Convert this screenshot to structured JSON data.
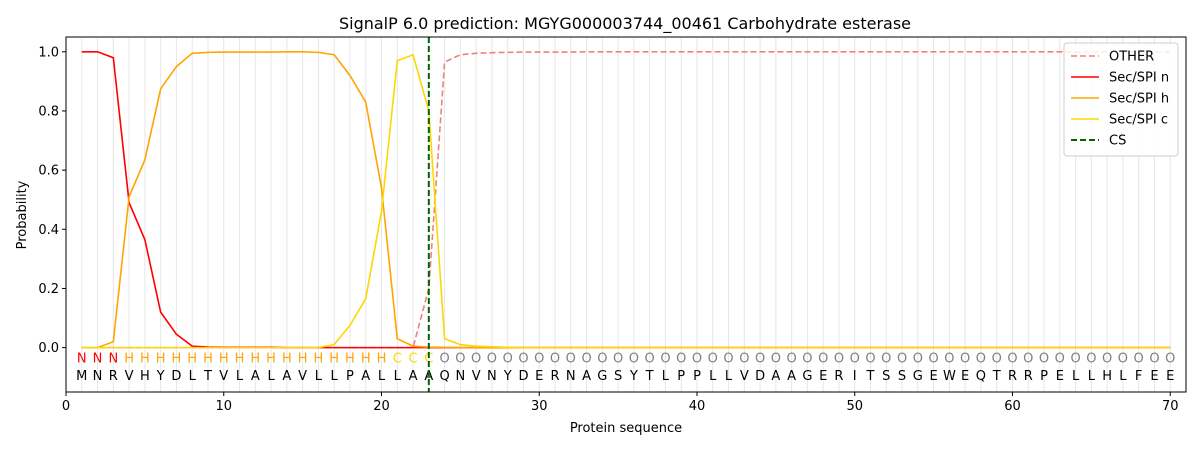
{
  "chart_data": {
    "type": "line",
    "title": "SignalP 6.0 prediction: MGYG000003744_00461 Carbohydrate esterase",
    "xlabel": "Protein sequence",
    "ylabel": "Probability",
    "xlim": [
      0,
      71
    ],
    "ylim": [
      -0.15,
      1.05
    ],
    "xticks": [
      0,
      10,
      20,
      30,
      40,
      50,
      60,
      70
    ],
    "yticks": [
      0.0,
      0.2,
      0.4,
      0.6,
      0.8,
      1.0
    ],
    "xtick_labels": [
      "0",
      "10",
      "20",
      "30",
      "40",
      "50",
      "60",
      "70"
    ],
    "ytick_labels": [
      "0.0",
      "0.2",
      "0.4",
      "0.6",
      "0.8",
      "1.0"
    ],
    "grid": "vertical lines at each residue",
    "legend_position": "top-right",
    "sequence": [
      "M",
      "N",
      "R",
      "V",
      "H",
      "Y",
      "D",
      "L",
      "T",
      "V",
      "L",
      "A",
      "L",
      "A",
      "V",
      "L",
      "L",
      "P",
      "A",
      "L",
      "L",
      "A",
      "A",
      "Q",
      "N",
      "V",
      "N",
      "Y",
      "D",
      "E",
      "R",
      "N",
      "A",
      "G",
      "S",
      "Y",
      "T",
      "L",
      "P",
      "P",
      "L",
      "L",
      "V",
      "D",
      "A",
      "A",
      "G",
      "E",
      "R",
      "I",
      "T",
      "S",
      "S",
      "G",
      "E",
      "W",
      "E",
      "Q",
      "T",
      "R",
      "R",
      "P",
      "E",
      "L",
      "L",
      "H",
      "L",
      "F",
      "E",
      "E"
    ],
    "region_labels": [
      "N",
      "N",
      "N",
      "H",
      "H",
      "H",
      "H",
      "H",
      "H",
      "H",
      "H",
      "H",
      "H",
      "H",
      "H",
      "H",
      "H",
      "H",
      "H",
      "H",
      "C",
      "C",
      "C",
      "O",
      "O",
      "O",
      "O",
      "O",
      "O",
      "O",
      "O",
      "O",
      "O",
      "O",
      "O",
      "O",
      "O",
      "O",
      "O",
      "O",
      "O",
      "O",
      "O",
      "O",
      "O",
      "O",
      "O",
      "O",
      "O",
      "O",
      "O",
      "O",
      "O",
      "O",
      "O",
      "O",
      "O",
      "O",
      "O",
      "O",
      "O",
      "O",
      "O",
      "O",
      "O",
      "O",
      "O",
      "O",
      "O",
      "O"
    ],
    "region_colors": {
      "N": "#ff0000",
      "H": "#ffa500",
      "C": "#ffd700",
      "O": "#808080"
    },
    "cs_position": 23,
    "series": [
      {
        "name": "OTHER",
        "color": "#f08080",
        "dash": "dashed",
        "values": [
          0.0,
          0.0,
          0.0,
          0.0,
          0.0,
          0.0,
          0.0,
          0.0,
          0.0,
          0.0,
          0.0,
          0.0,
          0.0,
          0.0,
          0.0,
          0.0,
          0.0,
          0.0,
          0.0,
          0.0,
          0.0,
          0.0,
          0.2,
          0.965,
          0.99,
          0.995,
          0.997,
          0.998,
          0.999,
          0.999,
          0.999,
          0.999,
          1.0,
          1.0,
          1.0,
          1.0,
          1.0,
          1.0,
          1.0,
          1.0,
          1.0,
          1.0,
          1.0,
          1.0,
          1.0,
          1.0,
          1.0,
          1.0,
          1.0,
          1.0,
          1.0,
          1.0,
          1.0,
          1.0,
          1.0,
          1.0,
          1.0,
          1.0,
          1.0,
          1.0,
          1.0,
          1.0,
          1.0,
          1.0,
          1.0,
          1.0,
          1.0,
          1.0,
          1.0,
          1.0
        ]
      },
      {
        "name": "Sec/SPI n",
        "color": "#ff0000",
        "dash": "solid",
        "values": [
          1.0,
          1.0,
          0.98,
          0.49,
          0.365,
          0.12,
          0.045,
          0.005,
          0.002,
          0.001,
          0.001,
          0.001,
          0.001,
          0.0,
          0.0,
          0.0,
          0.0,
          0.0,
          0.0,
          0.0,
          0.0,
          0.0,
          0.0,
          0.0,
          0.0,
          0.0,
          0.0,
          0.0,
          0.0,
          0.0,
          0.0,
          0.0,
          0.0,
          0.0,
          0.0,
          0.0,
          0.0,
          0.0,
          0.0,
          0.0,
          0.0,
          0.0,
          0.0,
          0.0,
          0.0,
          0.0,
          0.0,
          0.0,
          0.0,
          0.0,
          0.0,
          0.0,
          0.0,
          0.0,
          0.0,
          0.0,
          0.0,
          0.0,
          0.0,
          0.0,
          0.0,
          0.0,
          0.0,
          0.0,
          0.0,
          0.0,
          0.0,
          0.0,
          0.0,
          0.0
        ]
      },
      {
        "name": "Sec/SPI h",
        "color": "#ffa500",
        "dash": "solid",
        "values": [
          0.0,
          0.0,
          0.02,
          0.51,
          0.635,
          0.875,
          0.95,
          0.995,
          0.998,
          0.999,
          0.999,
          0.999,
          0.999,
          1.0,
          1.0,
          0.998,
          0.99,
          0.92,
          0.83,
          0.54,
          0.03,
          0.005,
          0.002,
          0.001,
          0.0,
          0.0,
          0.0,
          0.0,
          0.0,
          0.0,
          0.0,
          0.0,
          0.0,
          0.0,
          0.0,
          0.0,
          0.0,
          0.0,
          0.0,
          0.0,
          0.0,
          0.0,
          0.0,
          0.0,
          0.0,
          0.0,
          0.0,
          0.0,
          0.0,
          0.0,
          0.0,
          0.0,
          0.0,
          0.0,
          0.0,
          0.0,
          0.0,
          0.0,
          0.0,
          0.0,
          0.0,
          0.0,
          0.0,
          0.0,
          0.0,
          0.0,
          0.0,
          0.0,
          0.0,
          0.0
        ]
      },
      {
        "name": "Sec/SPI c",
        "color": "#ffd700",
        "dash": "solid",
        "values": [
          0.0,
          0.0,
          0.0,
          0.0,
          0.0,
          0.0,
          0.0,
          0.0,
          0.0,
          0.0,
          0.0,
          0.0,
          0.0,
          0.0,
          0.0,
          0.0,
          0.01,
          0.075,
          0.165,
          0.46,
          0.97,
          0.99,
          0.8,
          0.03,
          0.01,
          0.005,
          0.003,
          0.001,
          0.0,
          0.0,
          0.0,
          0.0,
          0.0,
          0.0,
          0.0,
          0.0,
          0.0,
          0.0,
          0.0,
          0.0,
          0.0,
          0.0,
          0.0,
          0.0,
          0.0,
          0.0,
          0.0,
          0.0,
          0.0,
          0.0,
          0.0,
          0.0,
          0.0,
          0.0,
          0.0,
          0.0,
          0.0,
          0.0,
          0.0,
          0.0,
          0.0,
          0.0,
          0.0,
          0.0,
          0.0,
          0.0,
          0.0,
          0.0,
          0.0,
          0.0
        ]
      },
      {
        "name": "CS",
        "color": "#006400",
        "dash": "dashed",
        "x": 23
      }
    ]
  }
}
